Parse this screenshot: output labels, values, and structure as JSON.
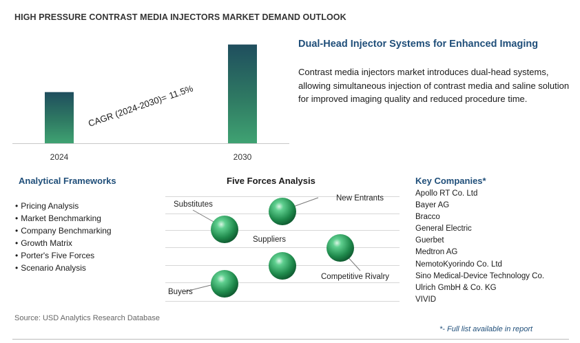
{
  "header": {
    "title": "HIGH PRESSURE CONTRAST MEDIA INJECTORS MARKET DEMAND OUTLOOK"
  },
  "chart_data": {
    "type": "bar",
    "categories": [
      "2024",
      "2030"
    ],
    "values": [
      1.0,
      1.93
    ],
    "ylim": [
      0,
      2.1
    ],
    "annotation": {
      "label": "CAGR (2024-2030)=",
      "value": "11.5%"
    },
    "grid": false,
    "colors": {
      "bar_top": "#1f4e5e",
      "bar_mid": "#2f7a63",
      "bar_bottom": "#3fa272"
    }
  },
  "feature": {
    "title": "Dual-Head Injector Systems for Enhanced Imaging",
    "description": "Contrast media injectors market introduces dual-head systems, allowing simultaneous injection of contrast media and saline solution for improved imaging quality and reduced procedure time."
  },
  "analytical_frameworks": {
    "title": "Analytical Frameworks",
    "items": [
      "Pricing Analysis",
      "Market Benchmarking",
      "Company Benchmarking",
      "Growth Matrix",
      "Porter's Five Forces",
      "Scenario Analysis"
    ]
  },
  "five_forces": {
    "title": "Five Forces Analysis",
    "forces": [
      "Substitutes",
      "New Entrants",
      "Suppliers",
      "Competitive Rivalry",
      "Buyers"
    ],
    "sphere_color": "#2e8b57"
  },
  "key_companies": {
    "title": "Key Companies*",
    "items": [
      "Apollo RT Co. Ltd",
      "Bayer AG",
      "Bracco",
      "General Electric",
      "Guerbet",
      "Medtron AG",
      "NemotoKyorindo Co. Ltd",
      "Sino Medical-Device Technology Co.",
      "Ulrich GmbH & Co. KG",
      "VIVID"
    ]
  },
  "footer": {
    "source": "Source: USD Analytics Research Database",
    "full_list": "*- Full list available in report"
  }
}
